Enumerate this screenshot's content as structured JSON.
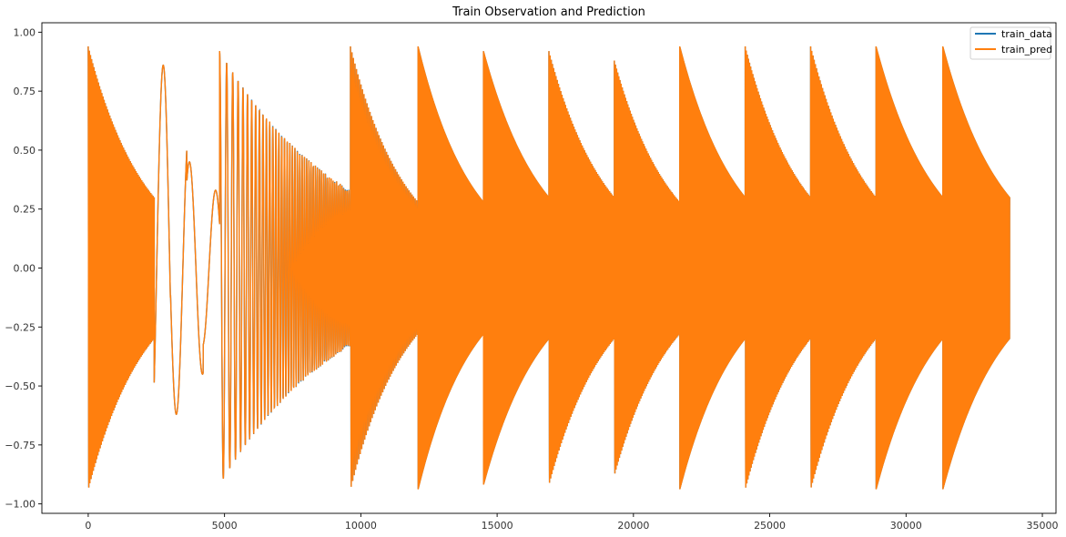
{
  "chart_data": {
    "type": "line",
    "title": "Train Observation and Prediction",
    "xlabel": "",
    "ylabel": "",
    "xlim": [
      -1700,
      35500
    ],
    "ylim": [
      -1.04,
      1.04
    ],
    "x_ticks": [
      0,
      5000,
      10000,
      15000,
      20000,
      25000,
      30000,
      35000
    ],
    "x_tick_labels": [
      "0",
      "5000",
      "10000",
      "15000",
      "20000",
      "25000",
      "30000",
      "35000"
    ],
    "y_ticks": [
      -1.0,
      -0.75,
      -0.5,
      -0.25,
      0.0,
      0.25,
      0.5,
      0.75,
      1.0
    ],
    "y_tick_labels": [
      "−1.00",
      "−0.75",
      "−0.50",
      "−0.25",
      "0.00",
      "0.25",
      "0.50",
      "0.75",
      "1.00"
    ],
    "grid": false,
    "legend_position": "top-right",
    "series": [
      {
        "name": "train_data",
        "color": "#1f77b4"
      },
      {
        "name": "train_pred",
        "color": "#ff7f0e"
      }
    ],
    "segments": [
      {
        "start": 0,
        "end": 2420,
        "cycles": 58,
        "amp_start": 0.94,
        "amp_end": 0.3,
        "mode": "decay"
      },
      {
        "start": 2420,
        "end": 4820,
        "cycles": 2.5,
        "mode": "slow",
        "peaks": [
          0.86,
          -0.62,
          0.45,
          -0.33
        ]
      },
      {
        "start": 4820,
        "end": 9620,
        "cycles": 48,
        "amp_start": 0.92,
        "amp_end": 0.33,
        "mode": "chirp"
      },
      {
        "start": 9620,
        "end": 12100,
        "cycles": 45,
        "amp_start": 0.94,
        "amp_end": 0.28,
        "mode": "decay"
      },
      {
        "start": 12100,
        "end": 14500,
        "cycles": 300,
        "amp_start": 0.94,
        "amp_end": 0.28,
        "mode": "decay"
      },
      {
        "start": 14500,
        "end": 16900,
        "cycles": 300,
        "amp_start": 0.92,
        "amp_end": 0.3,
        "mode": "decay"
      },
      {
        "start": 16900,
        "end": 19300,
        "cycles": 55,
        "amp_start": 0.92,
        "amp_end": 0.3,
        "mode": "decay"
      },
      {
        "start": 19300,
        "end": 21700,
        "cycles": 58,
        "amp_start": 0.88,
        "amp_end": 0.28,
        "mode": "decay"
      },
      {
        "start": 21700,
        "end": 24100,
        "cycles": 300,
        "amp_start": 0.94,
        "amp_end": 0.3,
        "mode": "decay"
      },
      {
        "start": 24100,
        "end": 26500,
        "cycles": 60,
        "amp_start": 0.94,
        "amp_end": 0.3,
        "mode": "decay"
      },
      {
        "start": 26500,
        "end": 28900,
        "cycles": 55,
        "amp_start": 0.94,
        "amp_end": 0.3,
        "mode": "decay"
      },
      {
        "start": 28900,
        "end": 31350,
        "cycles": 300,
        "amp_start": 0.94,
        "amp_end": 0.3,
        "mode": "decay"
      },
      {
        "start": 31350,
        "end": 33800,
        "cycles": 300,
        "amp_start": 0.94,
        "amp_end": 0.3,
        "mode": "decay"
      }
    ]
  }
}
